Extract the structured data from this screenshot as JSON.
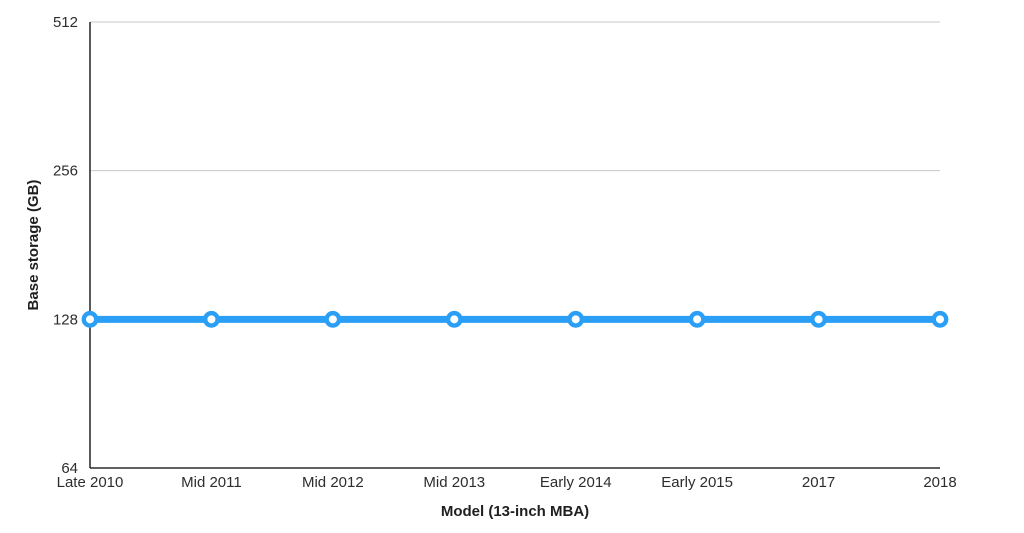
{
  "chart_data": {
    "type": "line",
    "categories": [
      "Late 2010",
      "Mid 2011",
      "Mid 2012",
      "Mid 2013",
      "Early 2014",
      "Early 2015",
      "2017",
      "2018"
    ],
    "series": [
      {
        "name": "Base storage",
        "values": [
          128,
          128,
          128,
          128,
          128,
          128,
          128,
          128
        ]
      }
    ],
    "title": "",
    "xlabel": "Model (13-inch MBA)",
    "ylabel": "Base storage (GB)",
    "y_ticks": [
      512,
      256,
      128,
      64
    ],
    "y_scale": "log2",
    "ylim": [
      64,
      512
    ],
    "grid": "horizontal",
    "legend": "none",
    "marker": "open-circle",
    "colors": {
      "line": "#2B9FF5",
      "marker_fill": "#FFFFFF",
      "grid": "#C9C9C9",
      "axis": "#000000",
      "text": "#2D2D2D"
    }
  }
}
